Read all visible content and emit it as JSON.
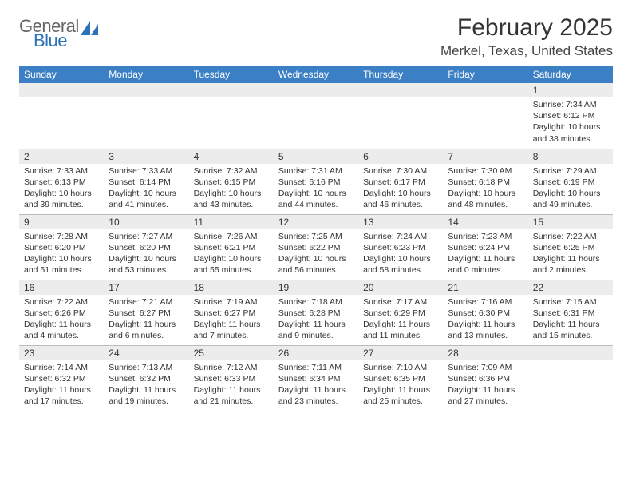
{
  "logo": {
    "word1": "General",
    "word2": "Blue"
  },
  "title": "February 2025",
  "location": "Merkel, Texas, United States",
  "day_headers": [
    "Sunday",
    "Monday",
    "Tuesday",
    "Wednesday",
    "Thursday",
    "Friday",
    "Saturday"
  ],
  "colors": {
    "header_bg": "#3b7fc4",
    "header_text": "#ffffff",
    "daynum_bg": "#ececec",
    "border": "#bbbbbb",
    "logo_gray": "#666666",
    "logo_blue": "#2d72b8"
  },
  "weeks": [
    [
      {
        "n": "",
        "lines": []
      },
      {
        "n": "",
        "lines": []
      },
      {
        "n": "",
        "lines": []
      },
      {
        "n": "",
        "lines": []
      },
      {
        "n": "",
        "lines": []
      },
      {
        "n": "",
        "lines": []
      },
      {
        "n": "1",
        "lines": [
          "Sunrise: 7:34 AM",
          "Sunset: 6:12 PM",
          "Daylight: 10 hours and 38 minutes."
        ]
      }
    ],
    [
      {
        "n": "2",
        "lines": [
          "Sunrise: 7:33 AM",
          "Sunset: 6:13 PM",
          "Daylight: 10 hours and 39 minutes."
        ]
      },
      {
        "n": "3",
        "lines": [
          "Sunrise: 7:33 AM",
          "Sunset: 6:14 PM",
          "Daylight: 10 hours and 41 minutes."
        ]
      },
      {
        "n": "4",
        "lines": [
          "Sunrise: 7:32 AM",
          "Sunset: 6:15 PM",
          "Daylight: 10 hours and 43 minutes."
        ]
      },
      {
        "n": "5",
        "lines": [
          "Sunrise: 7:31 AM",
          "Sunset: 6:16 PM",
          "Daylight: 10 hours and 44 minutes."
        ]
      },
      {
        "n": "6",
        "lines": [
          "Sunrise: 7:30 AM",
          "Sunset: 6:17 PM",
          "Daylight: 10 hours and 46 minutes."
        ]
      },
      {
        "n": "7",
        "lines": [
          "Sunrise: 7:30 AM",
          "Sunset: 6:18 PM",
          "Daylight: 10 hours and 48 minutes."
        ]
      },
      {
        "n": "8",
        "lines": [
          "Sunrise: 7:29 AM",
          "Sunset: 6:19 PM",
          "Daylight: 10 hours and 49 minutes."
        ]
      }
    ],
    [
      {
        "n": "9",
        "lines": [
          "Sunrise: 7:28 AM",
          "Sunset: 6:20 PM",
          "Daylight: 10 hours and 51 minutes."
        ]
      },
      {
        "n": "10",
        "lines": [
          "Sunrise: 7:27 AM",
          "Sunset: 6:20 PM",
          "Daylight: 10 hours and 53 minutes."
        ]
      },
      {
        "n": "11",
        "lines": [
          "Sunrise: 7:26 AM",
          "Sunset: 6:21 PM",
          "Daylight: 10 hours and 55 minutes."
        ]
      },
      {
        "n": "12",
        "lines": [
          "Sunrise: 7:25 AM",
          "Sunset: 6:22 PM",
          "Daylight: 10 hours and 56 minutes."
        ]
      },
      {
        "n": "13",
        "lines": [
          "Sunrise: 7:24 AM",
          "Sunset: 6:23 PM",
          "Daylight: 10 hours and 58 minutes."
        ]
      },
      {
        "n": "14",
        "lines": [
          "Sunrise: 7:23 AM",
          "Sunset: 6:24 PM",
          "Daylight: 11 hours and 0 minutes."
        ]
      },
      {
        "n": "15",
        "lines": [
          "Sunrise: 7:22 AM",
          "Sunset: 6:25 PM",
          "Daylight: 11 hours and 2 minutes."
        ]
      }
    ],
    [
      {
        "n": "16",
        "lines": [
          "Sunrise: 7:22 AM",
          "Sunset: 6:26 PM",
          "Daylight: 11 hours and 4 minutes."
        ]
      },
      {
        "n": "17",
        "lines": [
          "Sunrise: 7:21 AM",
          "Sunset: 6:27 PM",
          "Daylight: 11 hours and 6 minutes."
        ]
      },
      {
        "n": "18",
        "lines": [
          "Sunrise: 7:19 AM",
          "Sunset: 6:27 PM",
          "Daylight: 11 hours and 7 minutes."
        ]
      },
      {
        "n": "19",
        "lines": [
          "Sunrise: 7:18 AM",
          "Sunset: 6:28 PM",
          "Daylight: 11 hours and 9 minutes."
        ]
      },
      {
        "n": "20",
        "lines": [
          "Sunrise: 7:17 AM",
          "Sunset: 6:29 PM",
          "Daylight: 11 hours and 11 minutes."
        ]
      },
      {
        "n": "21",
        "lines": [
          "Sunrise: 7:16 AM",
          "Sunset: 6:30 PM",
          "Daylight: 11 hours and 13 minutes."
        ]
      },
      {
        "n": "22",
        "lines": [
          "Sunrise: 7:15 AM",
          "Sunset: 6:31 PM",
          "Daylight: 11 hours and 15 minutes."
        ]
      }
    ],
    [
      {
        "n": "23",
        "lines": [
          "Sunrise: 7:14 AM",
          "Sunset: 6:32 PM",
          "Daylight: 11 hours and 17 minutes."
        ]
      },
      {
        "n": "24",
        "lines": [
          "Sunrise: 7:13 AM",
          "Sunset: 6:32 PM",
          "Daylight: 11 hours and 19 minutes."
        ]
      },
      {
        "n": "25",
        "lines": [
          "Sunrise: 7:12 AM",
          "Sunset: 6:33 PM",
          "Daylight: 11 hours and 21 minutes."
        ]
      },
      {
        "n": "26",
        "lines": [
          "Sunrise: 7:11 AM",
          "Sunset: 6:34 PM",
          "Daylight: 11 hours and 23 minutes."
        ]
      },
      {
        "n": "27",
        "lines": [
          "Sunrise: 7:10 AM",
          "Sunset: 6:35 PM",
          "Daylight: 11 hours and 25 minutes."
        ]
      },
      {
        "n": "28",
        "lines": [
          "Sunrise: 7:09 AM",
          "Sunset: 6:36 PM",
          "Daylight: 11 hours and 27 minutes."
        ]
      },
      {
        "n": "",
        "lines": []
      }
    ]
  ]
}
